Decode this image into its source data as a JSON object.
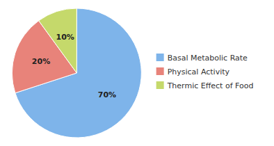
{
  "chart_data": {
    "type": "pie",
    "categories": [
      "Basal Metabolic Rate",
      "Physical Activity",
      "Thermic Effect of Food"
    ],
    "values": [
      70,
      20,
      10
    ],
    "value_labels": [
      "70%",
      "20%",
      "10%"
    ],
    "colors": [
      "#7eb4ea",
      "#e8837a",
      "#c5d96b"
    ],
    "data_labels": true,
    "legend": "right"
  }
}
